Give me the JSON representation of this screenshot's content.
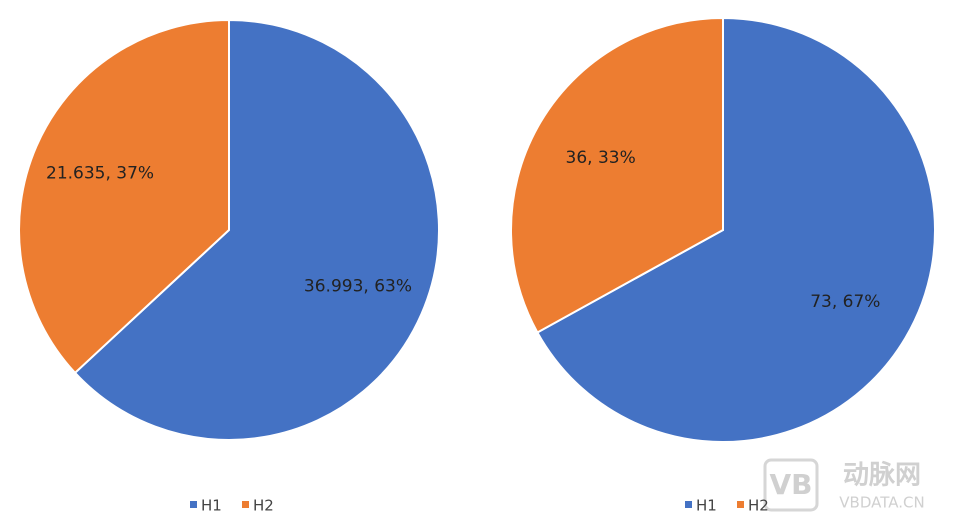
{
  "chart_data": [
    {
      "type": "pie",
      "categories": [
        "H1",
        "H2"
      ],
      "values": [
        36.993,
        21.635
      ],
      "value_labels": [
        "36.993, 63%",
        "21.635, 37%"
      ],
      "colors": [
        "#4472c4",
        "#ed7d31"
      ]
    },
    {
      "type": "pie",
      "categories": [
        "H1",
        "H2"
      ],
      "values": [
        73,
        36
      ],
      "value_labels": [
        "73, 67%",
        "36, 33%"
      ],
      "colors": [
        "#4472c4",
        "#ed7d31"
      ]
    }
  ],
  "watermark": {
    "logo": "动脉网",
    "url": "VBDATA.CN"
  }
}
